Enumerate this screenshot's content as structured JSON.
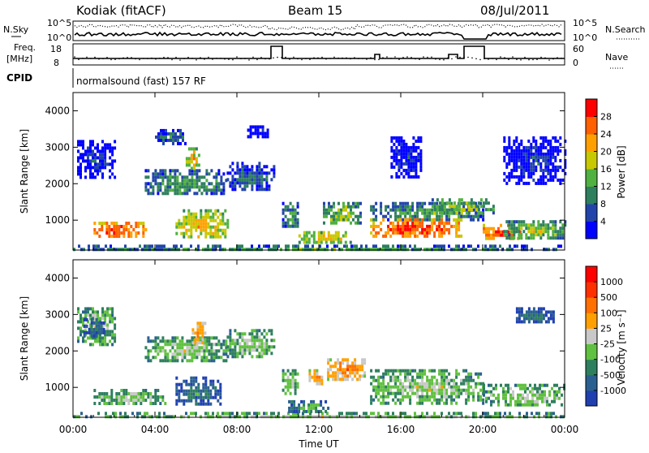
{
  "header": {
    "station": "Kodiak (fitACF)",
    "beam": "Beam 15",
    "date": "08/Jul/2011"
  },
  "top_panels": {
    "nsky_label": "N.Sky",
    "nsearch_label": "N.Search",
    "nsky_ticks": [
      "10^5",
      "10^0"
    ],
    "nsearch_ticks": [
      "10^5",
      "10^0"
    ],
    "freq_label_1": "Freq.",
    "freq_label_2": "[MHz]",
    "freq_ticks": [
      "18",
      "8"
    ],
    "nave_label": "Nave",
    "nave_ticks": [
      "60",
      "0"
    ],
    "cpid_label": "CPID",
    "cpid_text": "normalsound (fast) 157 RF"
  },
  "chart_data": [
    {
      "type": "heatmap",
      "title": "",
      "ylabel": "Slant Range [km]",
      "xlabel": "",
      "x_ticks": [
        "00:00",
        "04:00",
        "08:00",
        "12:00",
        "16:00",
        "20:00",
        "00:00"
      ],
      "y_ticks": [
        1000,
        2000,
        3000,
        4000
      ],
      "x_range_hours": [
        0,
        24
      ],
      "y_range_km": [
        180,
        4500
      ],
      "colorbar": {
        "label": "Power [dB]",
        "ticks": [
          "28",
          "24",
          "20",
          "16",
          "12",
          "8",
          "4"
        ],
        "colors": [
          "#0000ff",
          "#2244aa",
          "#2e7f5e",
          "#50b040",
          "#c8c800",
          "#ffa000",
          "#ff6000",
          "#ff0000"
        ]
      },
      "echo_regions": [
        {
          "t0": 0.0,
          "t1": 24.0,
          "r0": 180,
          "r1": 330,
          "level": 3
        },
        {
          "t0": 0.2,
          "t1": 2.0,
          "r0": 2200,
          "r1": 3200,
          "level": 1
        },
        {
          "t0": 1.0,
          "t1": 3.5,
          "r0": 520,
          "r1": 960,
          "level": 7
        },
        {
          "t0": 3.5,
          "t1": 7.5,
          "r0": 1700,
          "r1": 2400,
          "level": 3
        },
        {
          "t0": 4.0,
          "t1": 5.5,
          "r0": 3100,
          "r1": 3500,
          "level": 2
        },
        {
          "t0": 5.5,
          "t1": 6.2,
          "r0": 2400,
          "r1": 3000,
          "level": 5
        },
        {
          "t0": 5.0,
          "t1": 7.5,
          "r0": 500,
          "r1": 1300,
          "level": 5
        },
        {
          "t0": 7.5,
          "t1": 9.8,
          "r0": 1800,
          "r1": 2600,
          "level": 2
        },
        {
          "t0": 8.5,
          "t1": 9.5,
          "r0": 3300,
          "r1": 3600,
          "level": 1
        },
        {
          "t0": 10.2,
          "t1": 11.0,
          "r0": 800,
          "r1": 1500,
          "level": 3
        },
        {
          "t0": 11.0,
          "t1": 13.5,
          "r0": 400,
          "r1": 700,
          "level": 5
        },
        {
          "t0": 12.2,
          "t1": 14.0,
          "r0": 900,
          "r1": 1500,
          "level": 4
        },
        {
          "t0": 14.5,
          "t1": 20.0,
          "r0": 1000,
          "r1": 1500,
          "level": 3
        },
        {
          "t0": 14.5,
          "t1": 19.0,
          "r0": 550,
          "r1": 1050,
          "level": 7
        },
        {
          "t0": 15.5,
          "t1": 17.0,
          "r0": 2200,
          "r1": 3300,
          "level": 1
        },
        {
          "t0": 17.5,
          "t1": 20.5,
          "r0": 1200,
          "r1": 1600,
          "level": 4
        },
        {
          "t0": 20.0,
          "t1": 21.8,
          "r0": 500,
          "r1": 900,
          "level": 7
        },
        {
          "t0": 21.0,
          "t1": 24.0,
          "r0": 500,
          "r1": 1000,
          "level": 4
        },
        {
          "t0": 21.0,
          "t1": 24.0,
          "r0": 2000,
          "r1": 3300,
          "level": 1
        }
      ]
    },
    {
      "type": "heatmap",
      "title": "",
      "ylabel": "Slant Range [km]",
      "xlabel": "Time UT",
      "x_ticks": [
        "00:00",
        "04:00",
        "08:00",
        "12:00",
        "16:00",
        "20:00",
        "00:00"
      ],
      "y_ticks": [
        1000,
        2000,
        3000,
        4000
      ],
      "x_range_hours": [
        0,
        24
      ],
      "y_range_km": [
        180,
        4500
      ],
      "colorbar": {
        "label": "Velocity [m s⁻¹]",
        "ticks": [
          "1000",
          "500",
          "100",
          "25",
          "-25",
          "-100",
          "-500",
          "-1000"
        ],
        "colors": [
          "#2040b0",
          "#2a6090",
          "#2e7f5e",
          "#60c040",
          "#c8c8c8",
          "#ffa000",
          "#ff7000",
          "#ff3000",
          "#ff0000"
        ]
      },
      "echo_regions": [
        {
          "t0": 0.0,
          "t1": 24.0,
          "r0": 180,
          "r1": 330,
          "level": 4
        },
        {
          "t0": 0.2,
          "t1": 2.0,
          "r0": 2200,
          "r1": 3200,
          "level": 4
        },
        {
          "t0": 0.5,
          "t1": 1.5,
          "r0": 2400,
          "r1": 2900,
          "level": 2
        },
        {
          "t0": 1.0,
          "t1": 4.5,
          "r0": 520,
          "r1": 960,
          "level": 4
        },
        {
          "t0": 3.5,
          "t1": 7.5,
          "r0": 1700,
          "r1": 2400,
          "level": 4
        },
        {
          "t0": 5.8,
          "t1": 6.4,
          "r0": 2200,
          "r1": 2800,
          "level": 6
        },
        {
          "t0": 5.0,
          "t1": 7.2,
          "r0": 500,
          "r1": 1300,
          "level": 2
        },
        {
          "t0": 7.5,
          "t1": 9.8,
          "r0": 1800,
          "r1": 2600,
          "level": 4
        },
        {
          "t0": 10.2,
          "t1": 11.0,
          "r0": 800,
          "r1": 1500,
          "level": 4
        },
        {
          "t0": 10.5,
          "t1": 12.5,
          "r0": 350,
          "r1": 650,
          "level": 3
        },
        {
          "t0": 11.5,
          "t1": 12.2,
          "r0": 1100,
          "r1": 1500,
          "level": 6
        },
        {
          "t0": 12.4,
          "t1": 14.2,
          "r0": 1200,
          "r1": 1800,
          "level": 6
        },
        {
          "t0": 14.5,
          "t1": 20.0,
          "r0": 600,
          "r1": 1500,
          "level": 4
        },
        {
          "t0": 20.0,
          "t1": 24.0,
          "r0": 500,
          "r1": 1100,
          "level": 4
        },
        {
          "t0": 21.5,
          "t1": 23.5,
          "r0": 2800,
          "r1": 3200,
          "level": 2
        }
      ]
    }
  ]
}
